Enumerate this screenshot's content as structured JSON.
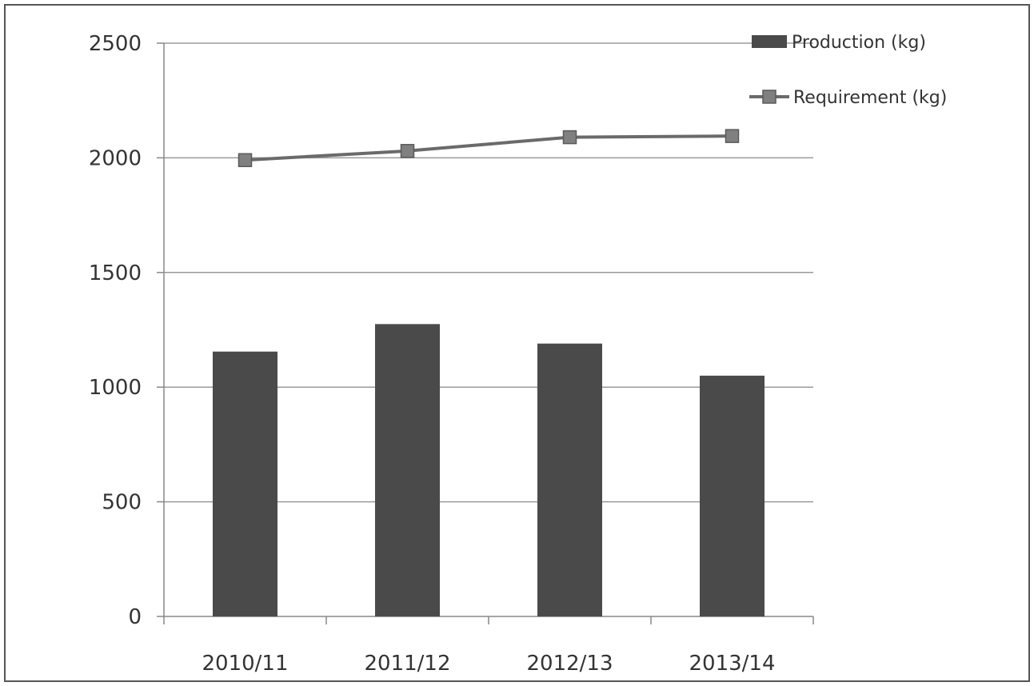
{
  "chart_data": {
    "type": "bar",
    "categories": [
      "2010/11",
      "2011/12",
      "2012/13",
      "2013/14"
    ],
    "series": [
      {
        "name": "Production (kg)",
        "type": "bar",
        "values": [
          1155,
          1275,
          1190,
          1050
        ],
        "color": "#4a4a4a"
      },
      {
        "name": "Requirement (kg)",
        "type": "line",
        "values": [
          1990,
          2030,
          2090,
          2095
        ],
        "color": "#6a6a6a"
      }
    ],
    "title": "",
    "xlabel": "",
    "ylabel": "",
    "ylim": [
      0,
      2500
    ],
    "yticks": [
      0,
      500,
      1000,
      1500,
      2000,
      2500
    ],
    "grid": true,
    "legend": "top-right"
  }
}
